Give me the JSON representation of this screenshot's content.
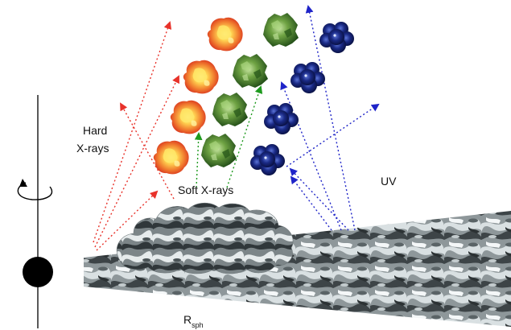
{
  "labels": {
    "hard_xrays_line1": "Hard",
    "hard_xrays_line2": "X-rays",
    "soft_xrays": "Soft X-rays",
    "uv": "UV",
    "r_sph_main": "R",
    "r_sph_sub": "sph"
  },
  "colors": {
    "hard_xray_arrows": "#e8322a",
    "soft_xray_arrows": "#1e9a1e",
    "uv_arrows": "#1f24c8",
    "hot_clump_outer": "#e8502a",
    "hot_clump_inner": "#ffe86a",
    "warm_clump": "#3f7a2a",
    "cool_clump": "#0f1a5c",
    "disk_metal": "#9aa3a6",
    "central_object": "#000000"
  },
  "icons": {
    "rotation": "rotation-arrow-icon",
    "central_object": "black-hole-icon"
  }
}
